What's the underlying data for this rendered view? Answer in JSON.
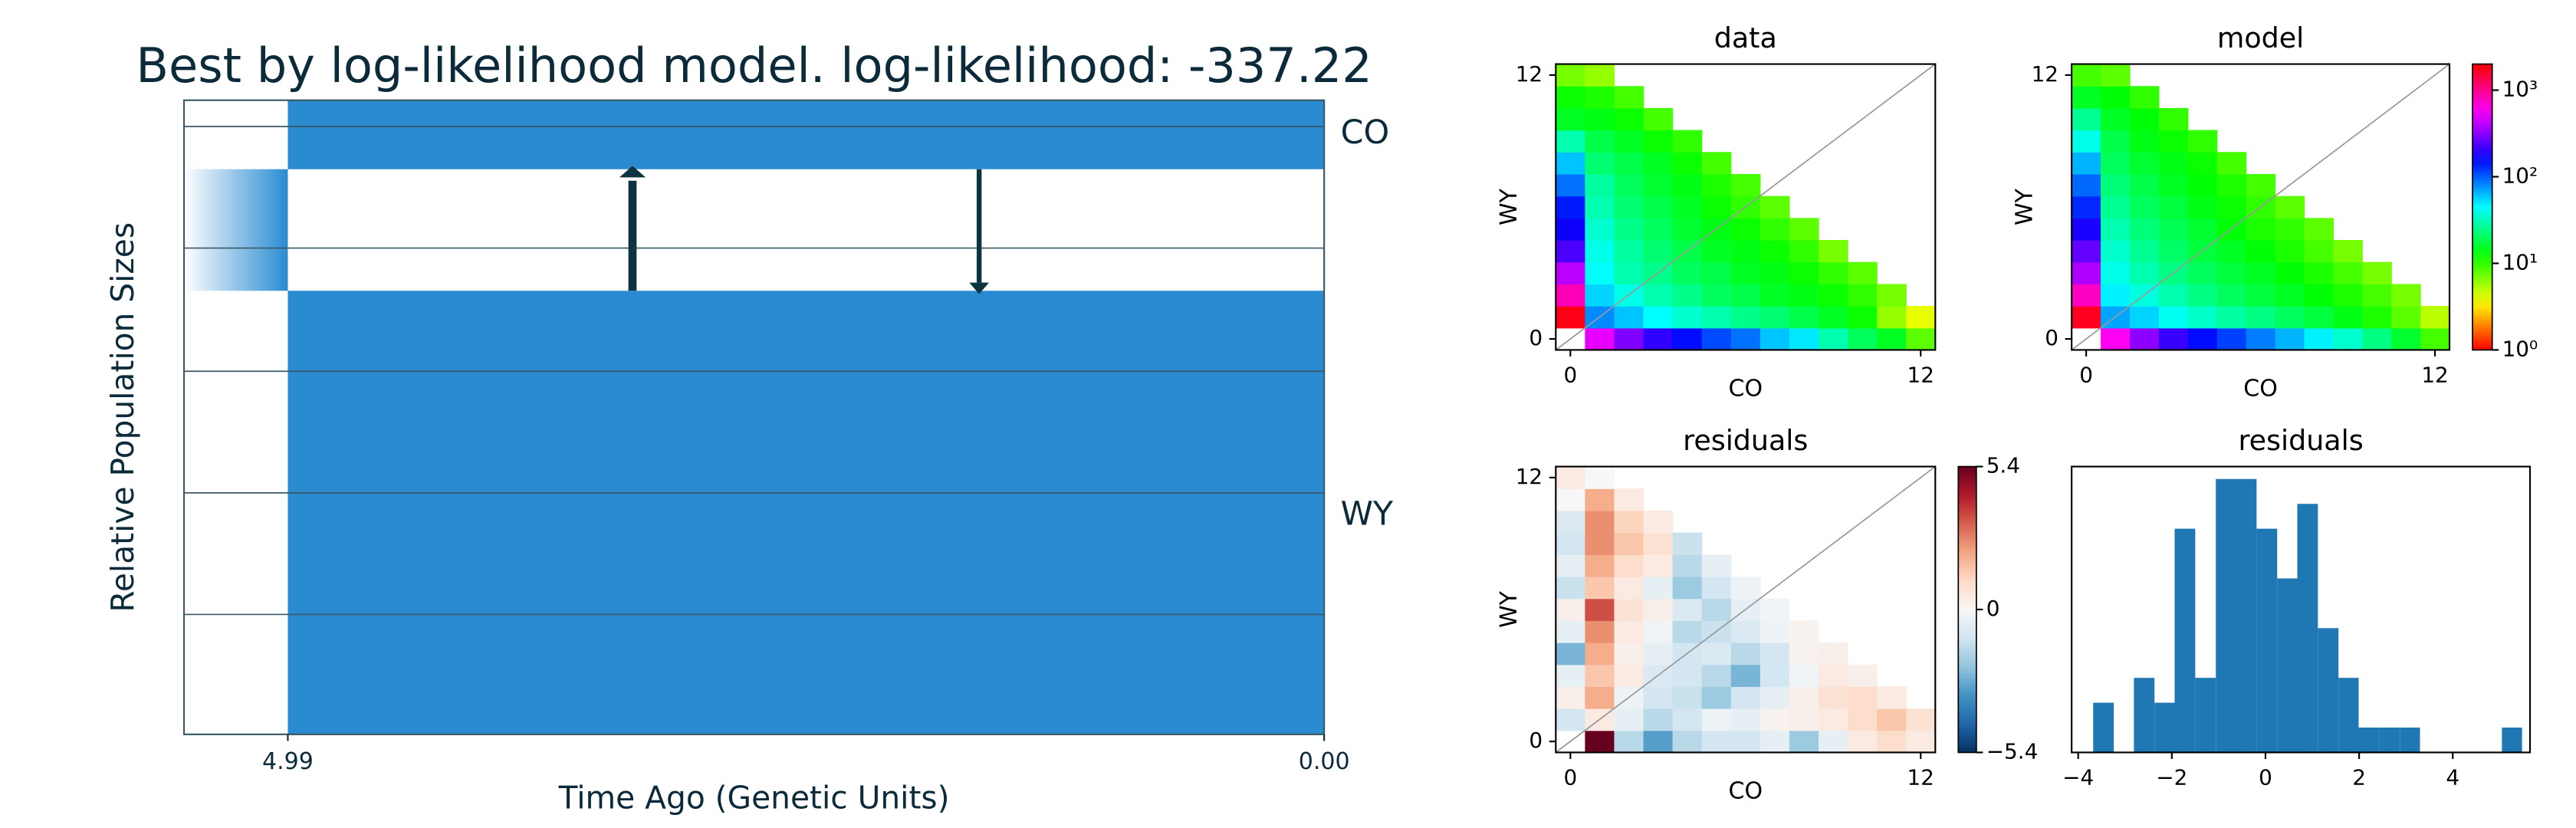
{
  "chart_data": [
    {
      "type": "demography",
      "title": "Best by log-likelihood model. log-likelihood: -337.22",
      "xlabel": "Time Ago (Genetic Units)",
      "ylabel": "Relative Population Sizes",
      "xlim": [
        5.49,
        0
      ],
      "xticks": [
        4.99,
        {
          "value": 0,
          "label": "0.00"
        }
      ],
      "populations": [
        "CO",
        "WY"
      ],
      "color": "#2a8bd1"
    },
    {
      "type": "heatmap",
      "title": "data",
      "xlabel": "CO",
      "ylabel": "WY",
      "xlim": [
        -0.5,
        12.5
      ],
      "ylim": [
        -0.5,
        12.5
      ],
      "xticks": [
        0,
        12
      ],
      "yticks": [
        0,
        12
      ],
      "colormap": "hsv",
      "log_scale": true,
      "color_lim": [
        1,
        2000
      ],
      "values": [
        [
          null,
          500,
          300,
          200,
          150,
          110,
          90,
          60,
          50,
          30,
          20,
          15,
          8
        ],
        [
          1800,
          80,
          60,
          45,
          35,
          30,
          25,
          22,
          18,
          15,
          12,
          6,
          4
        ],
        [
          800,
          55,
          40,
          30,
          25,
          20,
          18,
          15,
          14,
          12,
          10,
          7,
          null
        ],
        [
          400,
          45,
          30,
          25,
          20,
          18,
          15,
          14,
          12,
          10,
          8,
          null,
          null
        ],
        [
          230,
          40,
          28,
          22,
          18,
          15,
          14,
          12,
          10,
          7,
          null,
          null,
          null
        ],
        [
          170,
          35,
          25,
          20,
          16,
          14,
          12,
          10,
          8,
          null,
          null,
          null,
          null
        ],
        [
          140,
          30,
          22,
          18,
          15,
          12,
          10,
          8,
          null,
          null,
          null,
          null,
          null
        ],
        [
          90,
          28,
          20,
          16,
          14,
          11,
          9,
          null,
          null,
          null,
          null,
          null,
          null
        ],
        [
          60,
          22,
          18,
          15,
          12,
          9,
          null,
          null,
          null,
          null,
          null,
          null,
          null
        ],
        [
          30,
          18,
          15,
          12,
          10,
          null,
          null,
          null,
          null,
          null,
          null,
          null,
          null
        ],
        [
          15,
          14,
          12,
          9,
          null,
          null,
          null,
          null,
          null,
          null,
          null,
          null,
          null
        ],
        [
          12,
          11,
          9,
          null,
          null,
          null,
          null,
          null,
          null,
          null,
          null,
          null,
          null
        ],
        [
          7,
          6,
          null,
          null,
          null,
          null,
          null,
          null,
          null,
          null,
          null,
          null,
          null
        ]
      ]
    },
    {
      "type": "heatmap",
      "title": "model",
      "xlabel": "CO",
      "ylabel": "WY",
      "xlim": [
        -0.5,
        12.5
      ],
      "ylim": [
        -0.5,
        12.5
      ],
      "xticks": [
        0,
        12
      ],
      "yticks": [
        0,
        12
      ],
      "colormap": "hsv",
      "log_scale": true,
      "color_lim": [
        1,
        2000
      ],
      "colorbar_ticks": [
        {
          "value": 1,
          "label": "10⁰"
        },
        {
          "value": 10,
          "label": "10¹"
        },
        {
          "value": 100,
          "label": "10²"
        },
        {
          "value": 1000,
          "label": "10³"
        }
      ],
      "values": [
        [
          null,
          600,
          320,
          210,
          150,
          115,
          85,
          65,
          48,
          35,
          24,
          16,
          9
        ],
        [
          1700,
          70,
          55,
          42,
          34,
          28,
          24,
          20,
          17,
          14,
          11,
          8,
          5
        ],
        [
          750,
          48,
          38,
          30,
          24,
          20,
          17,
          15,
          13,
          11,
          9,
          7,
          null
        ],
        [
          380,
          40,
          30,
          24,
          20,
          17,
          15,
          13,
          11,
          9,
          7,
          null,
          null
        ],
        [
          260,
          35,
          26,
          21,
          17,
          15,
          13,
          11,
          9,
          7,
          null,
          null,
          null
        ],
        [
          180,
          30,
          23,
          19,
          16,
          13,
          11,
          10,
          8,
          null,
          null,
          null,
          null
        ],
        [
          130,
          26,
          20,
          17,
          14,
          12,
          10,
          8,
          null,
          null,
          null,
          null,
          null
        ],
        [
          95,
          23,
          18,
          15,
          13,
          11,
          9,
          null,
          null,
          null,
          null,
          null,
          null
        ],
        [
          65,
          20,
          16,
          14,
          12,
          9,
          null,
          null,
          null,
          null,
          null,
          null,
          null
        ],
        [
          40,
          18,
          14,
          12,
          10,
          null,
          null,
          null,
          null,
          null,
          null,
          null,
          null
        ],
        [
          26,
          15,
          13,
          10,
          null,
          null,
          null,
          null,
          null,
          null,
          null,
          null,
          null
        ],
        [
          15,
          13,
          10,
          null,
          null,
          null,
          null,
          null,
          null,
          null,
          null,
          null,
          null
        ],
        [
          9,
          8,
          null,
          null,
          null,
          null,
          null,
          null,
          null,
          null,
          null,
          null,
          null
        ]
      ]
    },
    {
      "type": "heatmap",
      "title": "residuals",
      "xlabel": "CO",
      "ylabel": "WY",
      "xlim": [
        -0.5,
        12.5
      ],
      "ylim": [
        -0.5,
        12.5
      ],
      "xticks": [
        0,
        12
      ],
      "yticks": [
        0,
        12
      ],
      "colormap": "RdBu_r",
      "log_scale": false,
      "color_lim": [
        -5.4,
        5.4
      ],
      "colorbar_ticks": [
        {
          "value": -5.4,
          "label": "−5.4"
        },
        0,
        5.4
      ],
      "values": [
        [
          null,
          5.4,
          -1.5,
          -3,
          -1.5,
          -1,
          -1,
          -0.5,
          -2,
          -0.5,
          0.5,
          1,
          0.5
        ],
        [
          -1,
          0.5,
          -0.5,
          -1.5,
          -1,
          -0.3,
          -0.5,
          0.2,
          0.3,
          0.5,
          1,
          1.5,
          0.8
        ],
        [
          0.3,
          2,
          -0.3,
          -1,
          -1.2,
          -2,
          -1,
          -0.5,
          0.3,
          0.8,
          1,
          0.5,
          null
        ],
        [
          -0.5,
          1.5,
          0.5,
          -0.8,
          -1,
          -1.5,
          -2.5,
          -1,
          -0.2,
          0.5,
          0.3,
          null,
          null
        ],
        [
          -2.5,
          2,
          0.3,
          -0.5,
          -1,
          -0.8,
          -1.5,
          -1,
          0.2,
          0.3,
          null,
          null,
          null
        ],
        [
          -0.5,
          2.5,
          0.5,
          -0.2,
          -1.5,
          -1.2,
          -0.8,
          -0.3,
          0.2,
          null,
          null,
          null,
          null
        ],
        [
          0.3,
          3.5,
          0.8,
          0.3,
          -0.8,
          -1.5,
          -0.5,
          -0.2,
          null,
          null,
          null,
          null,
          null
        ],
        [
          -1.2,
          1.5,
          0.5,
          -0.5,
          -2,
          -1,
          -0.3,
          null,
          null,
          null,
          null,
          null,
          null
        ],
        [
          -0.5,
          2,
          1,
          0.5,
          -1.5,
          -0.5,
          null,
          null,
          null,
          null,
          null,
          null,
          null
        ],
        [
          -1,
          2.5,
          1.5,
          0.8,
          -1.2,
          null,
          null,
          null,
          null,
          null,
          null,
          null,
          null
        ],
        [
          -0.8,
          2.5,
          1.2,
          0.5,
          null,
          null,
          null,
          null,
          null,
          null,
          null,
          null,
          null
        ],
        [
          0,
          2,
          0.5,
          null,
          null,
          null,
          null,
          null,
          null,
          null,
          null,
          null,
          null
        ],
        [
          0.5,
          0,
          null,
          null,
          null,
          null,
          null,
          null,
          null,
          null,
          null,
          null,
          null
        ]
      ]
    },
    {
      "type": "histogram",
      "title": "residuals",
      "color": "#1f77b4",
      "xlim": [
        -4.14,
        5.65
      ],
      "ylim": [
        0,
        11.5
      ],
      "xticks": [
        {
          "value": -4,
          "label": "−4"
        },
        {
          "value": -2,
          "label": "−2"
        },
        0,
        2,
        4
      ],
      "bins": [
        -3.68,
        -3.24,
        -2.81,
        -2.37,
        -1.94,
        -1.5,
        -1.06,
        -0.63,
        -0.19,
        0.25,
        0.68,
        1.12,
        1.56,
        1.99,
        2.43,
        2.87,
        3.3,
        3.74,
        4.17,
        4.61,
        5.05,
        5.48
      ],
      "values": [
        2,
        0,
        3,
        2,
        9,
        3,
        11,
        11,
        9,
        7,
        10,
        5,
        3,
        1,
        1,
        1,
        0,
        0,
        0,
        0,
        1
      ]
    }
  ]
}
